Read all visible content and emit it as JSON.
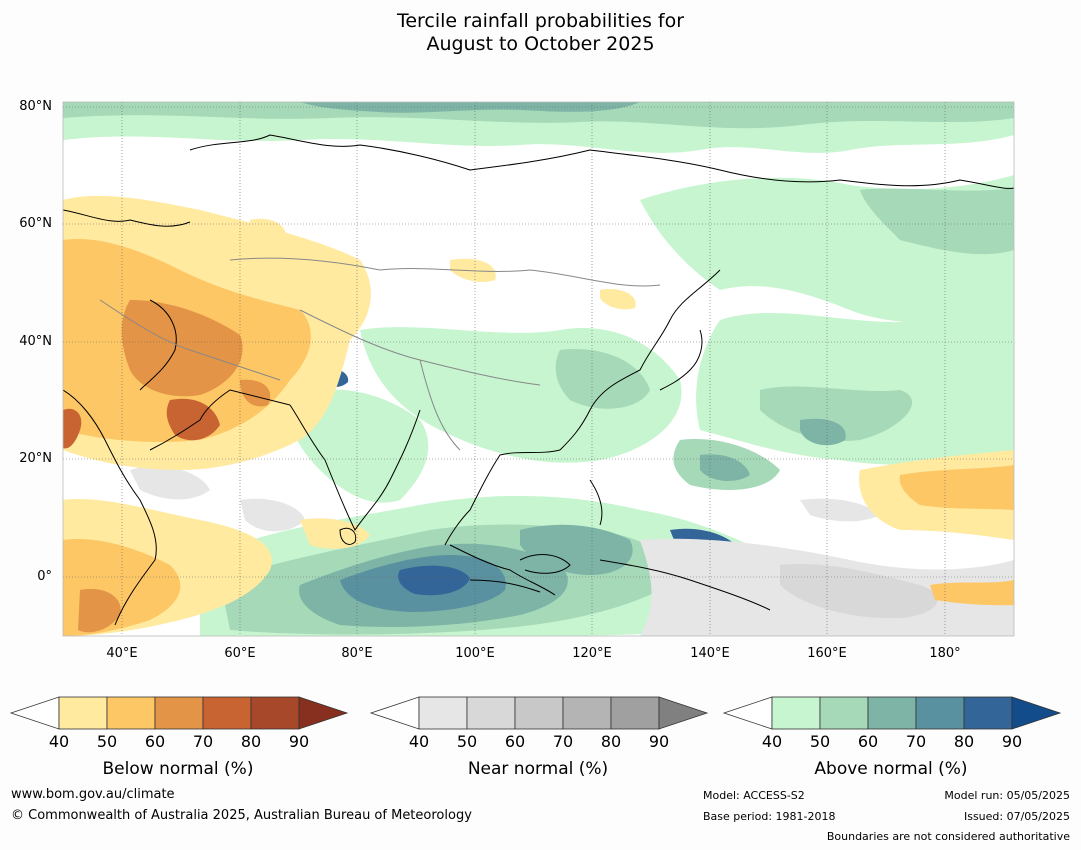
{
  "title_line1": "Tercile rainfall probabilities for",
  "title_line2": "August to October 2025",
  "map": {
    "lat_labels": [
      "80°N",
      "60°N",
      "40°N",
      "20°N",
      "0°"
    ],
    "lon_labels": [
      "40°E",
      "60°E",
      "80°E",
      "100°E",
      "120°E",
      "140°E",
      "160°E",
      "180°"
    ]
  },
  "colorbars": [
    {
      "title": "Below normal (%)",
      "ticks": [
        "40",
        "50",
        "60",
        "70",
        "80",
        "90"
      ],
      "colors": [
        "#ffffff",
        "#ffeaa0",
        "#fdc765",
        "#e39446",
        "#c86432",
        "#a8482a",
        "#883020"
      ]
    },
    {
      "title": "Near normal (%)",
      "ticks": [
        "40",
        "50",
        "60",
        "70",
        "80",
        "90"
      ],
      "colors": [
        "#ffffff",
        "#e6e6e6",
        "#d8d8d8",
        "#c8c8c8",
        "#b4b4b4",
        "#a0a0a0",
        "#808080"
      ]
    },
    {
      "title": "Above normal (%)",
      "ticks": [
        "40",
        "50",
        "60",
        "70",
        "80",
        "90"
      ],
      "colors": [
        "#ffffff",
        "#c6f5cf",
        "#a6d9b8",
        "#7db4a6",
        "#5a91a0",
        "#336598",
        "#134c8a"
      ]
    }
  ],
  "footer": {
    "website": "www.bom.gov.au/climate",
    "copyright": "© Commonwealth of Australia 2025, Australian Bureau of Meteorology",
    "model": "Model: ACCESS-S2",
    "base_period": "Base period: 1981-2018",
    "model_run": "Model run: 05/05/2025",
    "issued": "Issued: 07/05/2025",
    "disclaimer": "Boundaries are not considered authoritative"
  }
}
